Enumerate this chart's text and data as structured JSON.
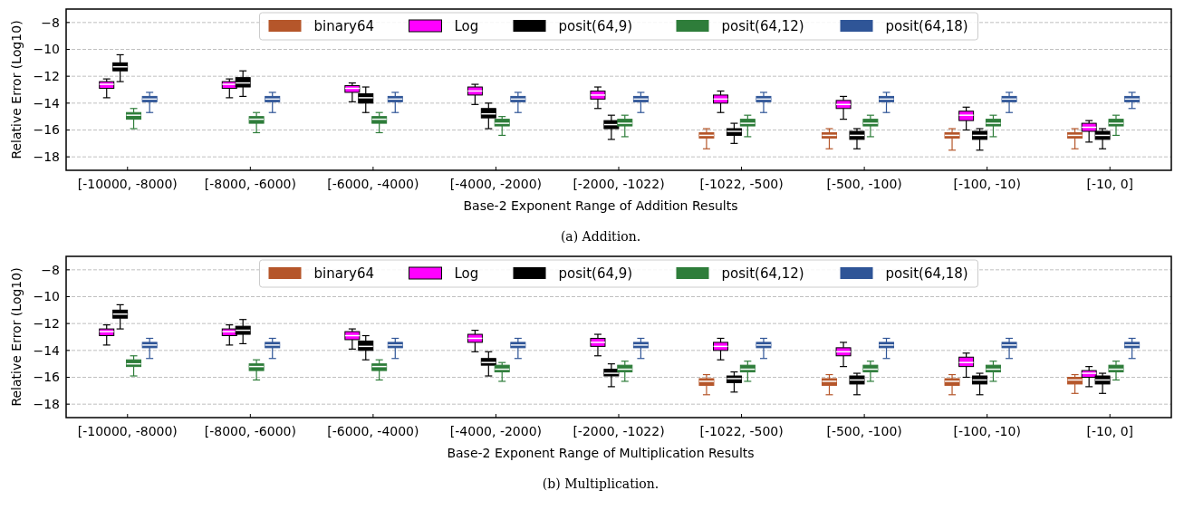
{
  "chart_data": [
    {
      "type": "box",
      "xlabel": "Base-2 Exponent Range of Addition Results",
      "ylabel": "Relative Error (Log10)",
      "annotations": [
        "(a)  Addition."
      ],
      "categories": [
        "[-10000, -8000)",
        "[-8000, -6000)",
        "[-6000, -4000)",
        "[-4000, -2000)",
        "[-2000, -1022)",
        "[-1022, -500)",
        "[-500, -100)",
        "[-100, -10)",
        "[-10, 0]"
      ],
      "ylim": [
        -19,
        -7
      ],
      "yticks": [
        -18,
        -16,
        -14,
        -12,
        -10,
        -8
      ],
      "grid": "y",
      "legend": "top",
      "series": [
        {
          "name": "binary64",
          "color": "#b5562a",
          "boxes": [
            null,
            null,
            null,
            null,
            null,
            {
              "low": -17.4,
              "q1": -16.6,
              "median": -16.4,
              "q3": -16.2,
              "high": -15.9
            },
            {
              "low": -17.4,
              "q1": -16.6,
              "median": -16.4,
              "q3": -16.2,
              "high": -15.9
            },
            {
              "low": -17.5,
              "q1": -16.6,
              "median": -16.4,
              "q3": -16.2,
              "high": -15.9
            },
            {
              "low": -17.4,
              "q1": -16.6,
              "median": -16.4,
              "q3": -16.2,
              "high": -15.9
            }
          ]
        },
        {
          "name": "Log",
          "color": "#ff00ff",
          "boxes": [
            {
              "low": -13.6,
              "q1": -12.9,
              "median": -12.6,
              "q3": -12.4,
              "high": -12.2
            },
            {
              "low": -13.6,
              "q1": -12.9,
              "median": -12.6,
              "q3": -12.4,
              "high": -12.2
            },
            {
              "low": -13.9,
              "q1": -13.2,
              "median": -12.9,
              "q3": -12.7,
              "high": -12.5
            },
            {
              "low": -14.1,
              "q1": -13.4,
              "median": -13.1,
              "q3": -12.8,
              "high": -12.6
            },
            {
              "low": -14.4,
              "q1": -13.7,
              "median": -13.4,
              "q3": -13.1,
              "high": -12.8
            },
            {
              "low": -14.7,
              "q1": -14.0,
              "median": -13.7,
              "q3": -13.4,
              "high": -13.1
            },
            {
              "low": -15.2,
              "q1": -14.4,
              "median": -14.1,
              "q3": -13.8,
              "high": -13.5
            },
            {
              "low": -16.0,
              "q1": -15.3,
              "median": -14.9,
              "q3": -14.6,
              "high": -14.3
            },
            {
              "low": -16.9,
              "q1": -16.1,
              "median": -15.8,
              "q3": -15.5,
              "high": -15.3
            }
          ]
        },
        {
          "name": "posit(64,9)",
          "color": "#000000",
          "boxes": [
            {
              "low": -12.4,
              "q1": -11.6,
              "median": -11.3,
              "q3": -11.0,
              "high": -10.4
            },
            {
              "low": -13.5,
              "q1": -12.8,
              "median": -12.5,
              "q3": -12.1,
              "high": -11.6
            },
            {
              "low": -14.7,
              "q1": -14.0,
              "median": -13.6,
              "q3": -13.3,
              "high": -12.8
            },
            {
              "low": -15.9,
              "q1": -15.1,
              "median": -14.8,
              "q3": -14.4,
              "high": -14.0
            },
            {
              "low": -16.7,
              "q1": -15.9,
              "median": -15.6,
              "q3": -15.3,
              "high": -14.9
            },
            {
              "low": -17.0,
              "q1": -16.4,
              "median": -16.1,
              "q3": -15.9,
              "high": -15.5
            },
            {
              "low": -17.4,
              "q1": -16.7,
              "median": -16.4,
              "q3": -16.1,
              "high": -15.9
            },
            {
              "low": -17.5,
              "q1": -16.7,
              "median": -16.4,
              "q3": -16.1,
              "high": -15.9
            },
            {
              "low": -17.4,
              "q1": -16.7,
              "median": -16.4,
              "q3": -16.1,
              "high": -15.9
            }
          ]
        },
        {
          "name": "posit(64,12)",
          "color": "#2e7d3a",
          "boxes": [
            {
              "low": -15.9,
              "q1": -15.2,
              "median": -14.9,
              "q3": -14.7,
              "high": -14.4
            },
            {
              "low": -16.2,
              "q1": -15.5,
              "median": -15.2,
              "q3": -15.0,
              "high": -14.7
            },
            {
              "low": -16.2,
              "q1": -15.5,
              "median": -15.2,
              "q3": -15.0,
              "high": -14.7
            },
            {
              "low": -16.4,
              "q1": -15.7,
              "median": -15.5,
              "q3": -15.2,
              "high": -15.0
            },
            {
              "low": -16.5,
              "q1": -15.7,
              "median": -15.5,
              "q3": -15.2,
              "high": -14.9
            },
            {
              "low": -16.5,
              "q1": -15.7,
              "median": -15.5,
              "q3": -15.2,
              "high": -14.9
            },
            {
              "low": -16.5,
              "q1": -15.7,
              "median": -15.5,
              "q3": -15.2,
              "high": -14.9
            },
            {
              "low": -16.5,
              "q1": -15.7,
              "median": -15.5,
              "q3": -15.2,
              "high": -14.9
            },
            {
              "low": -16.4,
              "q1": -15.7,
              "median": -15.5,
              "q3": -15.2,
              "high": -14.9
            }
          ]
        },
        {
          "name": "posit(64,18)",
          "color": "#2f5597",
          "boxes": [
            {
              "low": -14.7,
              "q1": -13.9,
              "median": -13.7,
              "q3": -13.5,
              "high": -13.2
            },
            {
              "low": -14.7,
              "q1": -13.9,
              "median": -13.7,
              "q3": -13.5,
              "high": -13.2
            },
            {
              "low": -14.7,
              "q1": -13.9,
              "median": -13.7,
              "q3": -13.5,
              "high": -13.2
            },
            {
              "low": -14.7,
              "q1": -13.9,
              "median": -13.7,
              "q3": -13.5,
              "high": -13.2
            },
            {
              "low": -14.7,
              "q1": -13.9,
              "median": -13.7,
              "q3": -13.5,
              "high": -13.2
            },
            {
              "low": -14.7,
              "q1": -13.9,
              "median": -13.7,
              "q3": -13.5,
              "high": -13.2
            },
            {
              "low": -14.7,
              "q1": -13.9,
              "median": -13.7,
              "q3": -13.5,
              "high": -13.2
            },
            {
              "low": -14.7,
              "q1": -13.9,
              "median": -13.7,
              "q3": -13.5,
              "high": -13.2
            },
            {
              "low": -14.4,
              "q1": -13.9,
              "median": -13.7,
              "q3": -13.5,
              "high": -13.2
            }
          ]
        }
      ]
    },
    {
      "type": "box",
      "xlabel": "Base-2 Exponent Range of Multiplication Results",
      "ylabel": "Relative Error (Log10)",
      "annotations": [
        "(b)  Multiplication."
      ],
      "categories": [
        "[-10000, -8000)",
        "[-8000, -6000)",
        "[-6000, -4000)",
        "[-4000, -2000)",
        "[-2000, -1022)",
        "[-1022, -500)",
        "[-500, -100)",
        "[-100, -10)",
        "[-10, 0]"
      ],
      "ylim": [
        -19,
        -7
      ],
      "yticks": [
        -18,
        -16,
        -14,
        -12,
        -10,
        -8
      ],
      "grid": "y",
      "legend": "top",
      "series": [
        {
          "name": "binary64",
          "color": "#b5562a",
          "boxes": [
            null,
            null,
            null,
            null,
            null,
            {
              "low": -17.3,
              "q1": -16.6,
              "median": -16.3,
              "q3": -16.1,
              "high": -15.8
            },
            {
              "low": -17.3,
              "q1": -16.6,
              "median": -16.3,
              "q3": -16.1,
              "high": -15.8
            },
            {
              "low": -17.3,
              "q1": -16.6,
              "median": -16.3,
              "q3": -16.1,
              "high": -15.8
            },
            {
              "low": -17.2,
              "q1": -16.5,
              "median": -16.2,
              "q3": -16.0,
              "high": -15.8
            }
          ]
        },
        {
          "name": "Log",
          "color": "#ff00ff",
          "boxes": [
            {
              "low": -13.6,
              "q1": -12.9,
              "median": -12.6,
              "q3": -12.4,
              "high": -12.1
            },
            {
              "low": -13.6,
              "q1": -12.9,
              "median": -12.6,
              "q3": -12.4,
              "high": -12.1
            },
            {
              "low": -13.9,
              "q1": -13.2,
              "median": -12.9,
              "q3": -12.6,
              "high": -12.4
            },
            {
              "low": -14.1,
              "q1": -13.4,
              "median": -13.1,
              "q3": -12.8,
              "high": -12.5
            },
            {
              "low": -14.4,
              "q1": -13.7,
              "median": -13.4,
              "q3": -13.1,
              "high": -12.8
            },
            {
              "low": -14.7,
              "q1": -14.0,
              "median": -13.7,
              "q3": -13.4,
              "high": -13.1
            },
            {
              "low": -15.2,
              "q1": -14.4,
              "median": -14.1,
              "q3": -13.8,
              "high": -13.4
            },
            {
              "low": -16.0,
              "q1": -15.2,
              "median": -14.9,
              "q3": -14.5,
              "high": -14.2
            },
            {
              "low": -16.7,
              "q1": -16.0,
              "median": -15.7,
              "q3": -15.5,
              "high": -15.2
            }
          ]
        },
        {
          "name": "posit(64,9)",
          "color": "#000000",
          "boxes": [
            {
              "low": -12.4,
              "q1": -11.6,
              "median": -11.3,
              "q3": -11.0,
              "high": -10.6
            },
            {
              "low": -13.5,
              "q1": -12.8,
              "median": -12.5,
              "q3": -12.2,
              "high": -11.7
            },
            {
              "low": -14.7,
              "q1": -14.0,
              "median": -13.7,
              "q3": -13.3,
              "high": -12.9
            },
            {
              "low": -15.9,
              "q1": -15.1,
              "median": -14.9,
              "q3": -14.6,
              "high": -14.1
            },
            {
              "low": -16.7,
              "q1": -15.9,
              "median": -15.7,
              "q3": -15.4,
              "high": -15.0
            },
            {
              "low": -17.1,
              "q1": -16.4,
              "median": -16.1,
              "q3": -15.9,
              "high": -15.6
            },
            {
              "low": -17.3,
              "q1": -16.5,
              "median": -16.2,
              "q3": -15.9,
              "high": -15.7
            },
            {
              "low": -17.3,
              "q1": -16.5,
              "median": -16.2,
              "q3": -15.9,
              "high": -15.7
            },
            {
              "low": -17.2,
              "q1": -16.5,
              "median": -16.2,
              "q3": -15.9,
              "high": -15.7
            }
          ]
        },
        {
          "name": "posit(64,12)",
          "color": "#2e7d3a",
          "boxes": [
            {
              "low": -15.9,
              "q1": -15.2,
              "median": -15.0,
              "q3": -14.7,
              "high": -14.4
            },
            {
              "low": -16.2,
              "q1": -15.5,
              "median": -15.2,
              "q3": -15.0,
              "high": -14.7
            },
            {
              "low": -16.2,
              "q1": -15.5,
              "median": -15.2,
              "q3": -15.0,
              "high": -14.7
            },
            {
              "low": -16.3,
              "q1": -15.6,
              "median": -15.4,
              "q3": -15.1,
              "high": -14.9
            },
            {
              "low": -16.3,
              "q1": -15.6,
              "median": -15.4,
              "q3": -15.1,
              "high": -14.8
            },
            {
              "low": -16.3,
              "q1": -15.6,
              "median": -15.4,
              "q3": -15.1,
              "high": -14.8
            },
            {
              "low": -16.3,
              "q1": -15.6,
              "median": -15.4,
              "q3": -15.1,
              "high": -14.8
            },
            {
              "low": -16.3,
              "q1": -15.6,
              "median": -15.4,
              "q3": -15.1,
              "high": -14.8
            },
            {
              "low": -16.2,
              "q1": -15.6,
              "median": -15.4,
              "q3": -15.1,
              "high": -14.8
            }
          ]
        },
        {
          "name": "posit(64,18)",
          "color": "#2f5597",
          "boxes": [
            {
              "low": -14.6,
              "q1": -13.8,
              "median": -13.6,
              "q3": -13.4,
              "high": -13.1
            },
            {
              "low": -14.6,
              "q1": -13.8,
              "median": -13.6,
              "q3": -13.4,
              "high": -13.1
            },
            {
              "low": -14.6,
              "q1": -13.8,
              "median": -13.6,
              "q3": -13.4,
              "high": -13.1
            },
            {
              "low": -14.6,
              "q1": -13.8,
              "median": -13.6,
              "q3": -13.4,
              "high": -13.1
            },
            {
              "low": -14.6,
              "q1": -13.8,
              "median": -13.6,
              "q3": -13.4,
              "high": -13.1
            },
            {
              "low": -14.6,
              "q1": -13.8,
              "median": -13.6,
              "q3": -13.4,
              "high": -13.1
            },
            {
              "low": -14.6,
              "q1": -13.8,
              "median": -13.6,
              "q3": -13.4,
              "high": -13.1
            },
            {
              "low": -14.6,
              "q1": -13.8,
              "median": -13.6,
              "q3": -13.4,
              "high": -13.1
            },
            {
              "low": -14.6,
              "q1": -13.8,
              "median": -13.6,
              "q3": -13.4,
              "high": -13.1
            }
          ]
        }
      ]
    }
  ]
}
